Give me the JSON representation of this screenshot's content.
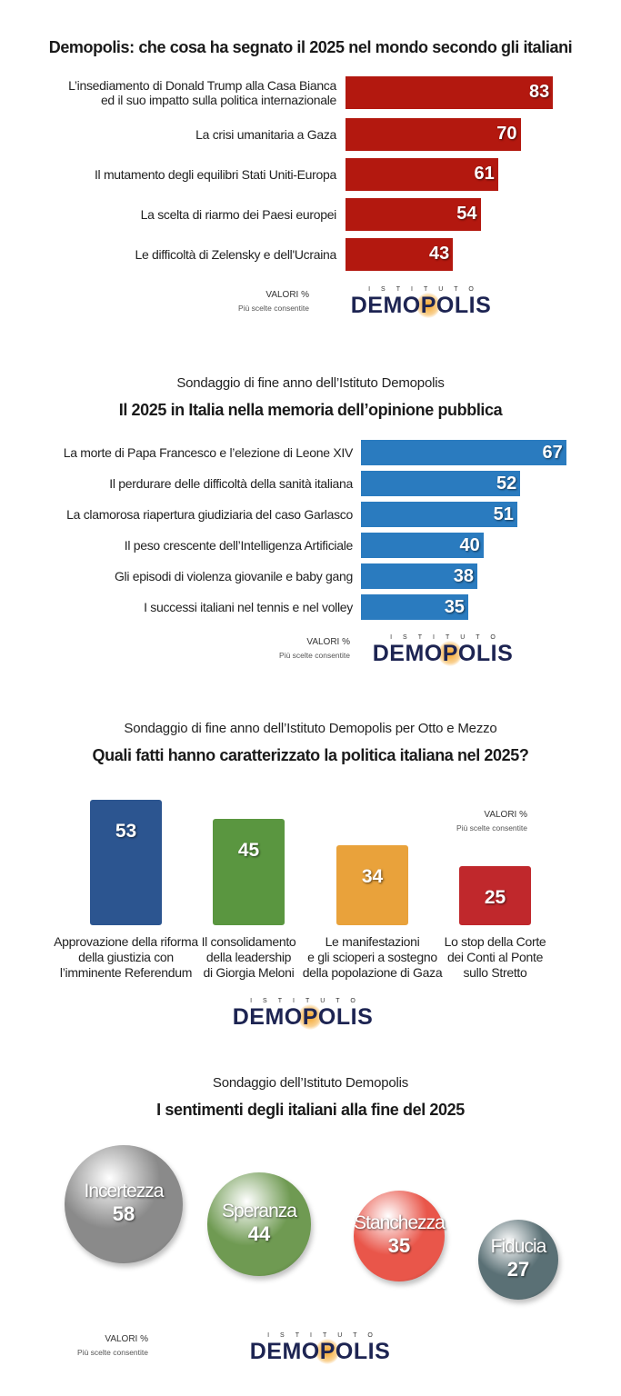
{
  "logo": {
    "top": "ISTITUTO",
    "main": "DEMOPOLIS"
  },
  "notes": {
    "values": "VALORI %",
    "multi": "Più scelte consentite"
  },
  "chart_data": [
    {
      "type": "bar",
      "orientation": "horizontal",
      "title": "Demopolis: che cosa ha segnato il 2025 nel mondo secondo gli italiani",
      "categories": [
        "L’insediamento di Donald Trump alla Casa Bianca\ned il suo impatto sulla politica internazionale",
        "La crisi umanitaria a Gaza",
        "Il mutamento degli equilibri Stati Uniti-Europa",
        "La scelta di riarmo dei Paesi europei",
        "Le difficoltà di Zelensky e dell'Ucraina"
      ],
      "values": [
        83,
        70,
        61,
        54,
        43
      ],
      "color": "#b3180f",
      "unit": "%"
    },
    {
      "type": "bar",
      "orientation": "horizontal",
      "subtitle": "Sondaggio di fine anno dell’Istituto Demopolis",
      "title": "Il 2025 in Italia nella memoria dell’opinione pubblica",
      "categories": [
        "La morte di Papa Francesco e l’elezione di Leone XIV",
        "Il perdurare delle difficoltà della sanità italiana",
        "La clamorosa riapertura giudiziaria del caso Garlasco",
        "Il peso crescente dell’Intelligenza Artificiale",
        "Gli episodi di violenza giovanile e baby gang",
        "I successi italiani nel tennis e nel volley"
      ],
      "values": [
        67,
        52,
        51,
        40,
        38,
        35
      ],
      "color": "#2a7bbf",
      "unit": "%"
    },
    {
      "type": "bar",
      "orientation": "vertical",
      "subtitle": "Sondaggio di fine anno dell’Istituto Demopolis per Otto e Mezzo",
      "title": "Quali fatti hanno caratterizzato la politica italiana nel 2025?",
      "categories": [
        "Approvazione della riforma\ndella giustizia con\nl’imminente Referendum",
        "Il consolidamento\ndella leadership\ndi Giorgia Meloni",
        "Le manifestazioni\ne gli scioperi a sostegno\ndella popolazione di Gaza",
        "Lo stop della Corte\ndei Conti al Ponte\nsullo Stretto"
      ],
      "values": [
        53,
        45,
        34,
        25
      ],
      "colors": [
        "#2c5590",
        "#5a9640",
        "#e9a23b",
        "#c0282c"
      ],
      "unit": "%"
    },
    {
      "type": "bubble",
      "subtitle": "Sondaggio dell’Istituto Demopolis",
      "title": "I sentimenti degli italiani alla fine del 2025",
      "categories": [
        "Incertezza",
        "Speranza",
        "Stanchezza",
        "Fiducia"
      ],
      "values": [
        58,
        44,
        35,
        27
      ],
      "colors": [
        "#8a8a8a",
        "#6f9a52",
        "#e9564a",
        "#5a7075"
      ],
      "unit": "%"
    }
  ]
}
